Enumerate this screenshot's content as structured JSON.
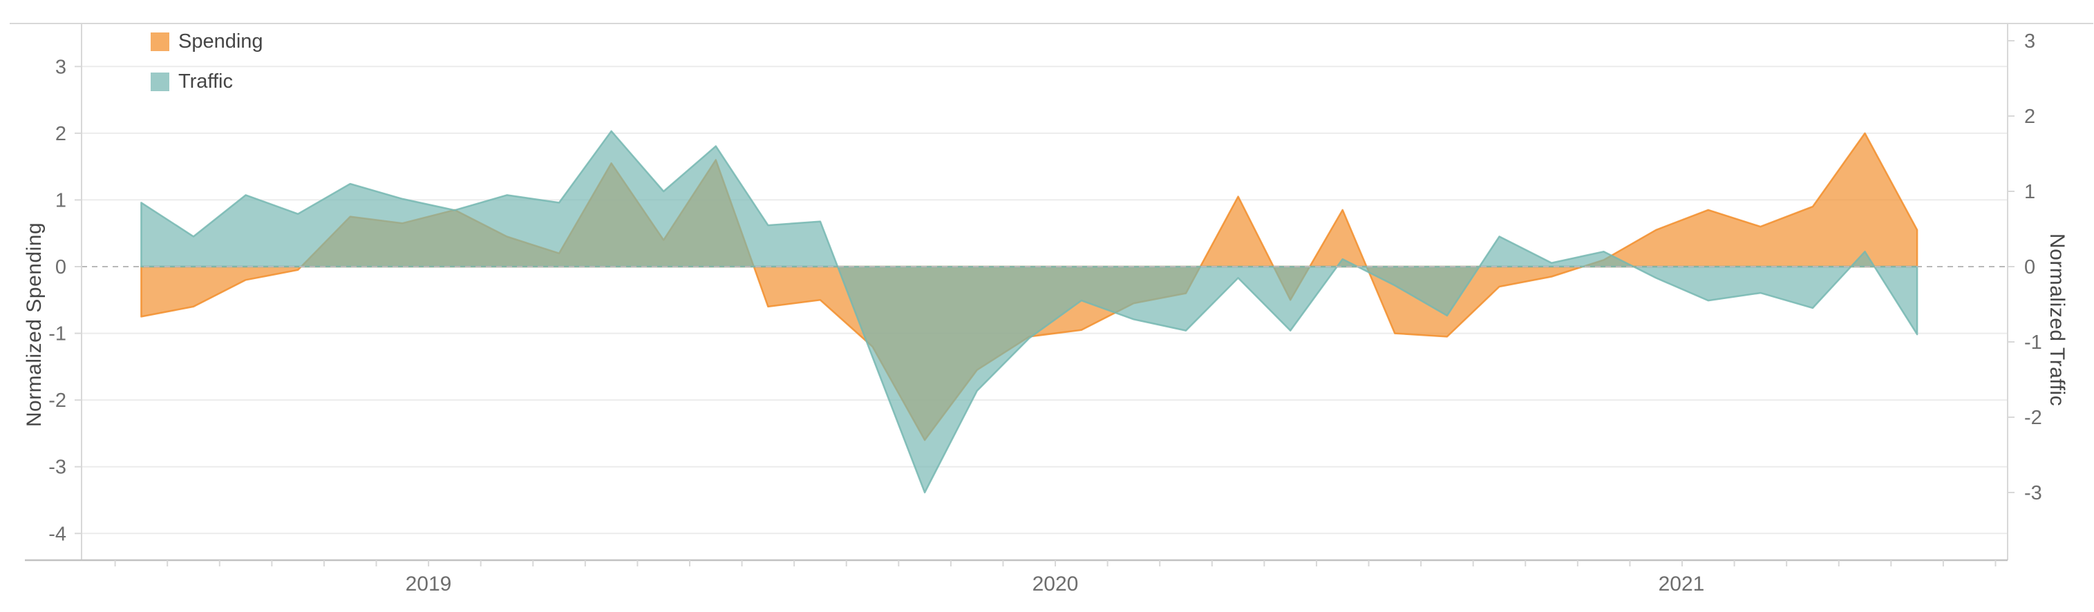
{
  "chart_data": {
    "type": "area",
    "dual_axis": true,
    "x_months": [
      "2019-01",
      "2019-02",
      "2019-03",
      "2019-04",
      "2019-05",
      "2019-06",
      "2019-07",
      "2019-08",
      "2019-09",
      "2019-10",
      "2019-11",
      "2019-12",
      "2020-01",
      "2020-02",
      "2020-03",
      "2020-04",
      "2020-05",
      "2020-06",
      "2020-07",
      "2020-08",
      "2020-09",
      "2020-10",
      "2020-11",
      "2020-12",
      "2021-01",
      "2021-02",
      "2021-03",
      "2021-04",
      "2021-05",
      "2021-06",
      "2021-07",
      "2021-08",
      "2021-09",
      "2021-10",
      "2021-11"
    ],
    "series": [
      {
        "name": "Spending",
        "axis": "left",
        "color": "#F28E2B",
        "values": [
          -0.75,
          -0.6,
          -0.2,
          -0.05,
          0.75,
          0.65,
          0.85,
          0.45,
          0.2,
          1.55,
          0.4,
          1.6,
          -0.6,
          -0.5,
          -1.2,
          -2.6,
          -1.55,
          -1.05,
          -0.95,
          -0.55,
          -0.4,
          1.05,
          -0.5,
          0.85,
          -1.0,
          -1.05,
          -0.3,
          -0.15,
          0.1,
          0.55,
          0.85,
          0.6,
          0.9,
          2.0,
          0.55
        ]
      },
      {
        "name": "Traffic",
        "axis": "right",
        "color": "#76B7B2",
        "values": [
          0.85,
          0.4,
          0.95,
          0.7,
          1.1,
          0.9,
          0.75,
          0.95,
          0.85,
          1.8,
          1.0,
          1.6,
          0.55,
          0.6,
          -1.2,
          -3.0,
          -1.65,
          -0.95,
          -0.45,
          -0.7,
          -0.85,
          -0.15,
          -0.85,
          0.1,
          -0.25,
          -0.65,
          0.4,
          0.05,
          0.2,
          -0.15,
          -0.45,
          -0.35,
          -0.55,
          0.2,
          -0.9
        ]
      }
    ],
    "axes": {
      "left": {
        "title": "Normalized Spending",
        "ticks": [
          3,
          2,
          1,
          0,
          -1,
          -2,
          -3,
          -4
        ],
        "range": [
          -4.4,
          3.65
        ]
      },
      "right": {
        "title": "Normalized Traffic",
        "ticks": [
          3,
          2,
          1,
          0,
          -1,
          -2,
          -3
        ],
        "range": [
          -3.9,
          3.23
        ]
      },
      "x": {
        "year_labels": [
          "2019",
          "2020",
          "2021"
        ],
        "tick_interval": "month"
      }
    },
    "legend": {
      "items": [
        {
          "label": "Spending",
          "color": "#F28E2B"
        },
        {
          "label": "Traffic",
          "color": "#76B7B2"
        }
      ]
    },
    "style": {
      "fill_opacity": 0.68,
      "stroke_opacity": 0.85,
      "grid_color": "#ECECEC",
      "zero_line_color": "#B9B9B9",
      "axis_line_color": "#D8D8D8",
      "bottom_axis_color": "#C2C2C2",
      "tick_mark_color": "#D8D8D8"
    },
    "zero_line": true,
    "grid": true,
    "legend_position": "top-left-inside"
  }
}
